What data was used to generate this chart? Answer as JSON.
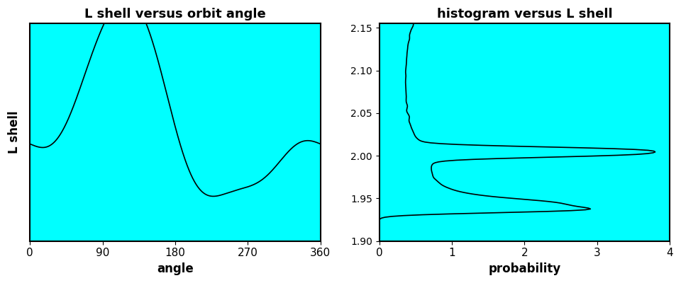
{
  "title_left": "L shell versus orbit angle",
  "title_right": "histogram versus L shell",
  "xlabel_left": "angle",
  "ylabel_left": "L shell",
  "xlabel_right": "probability",
  "xlim_left": [
    0,
    360
  ],
  "ylim_left": [
    1.875,
    2.165
  ],
  "xlim_right": [
    0,
    4
  ],
  "ylim_right": [
    1.9,
    2.155
  ],
  "xticks_left": [
    0,
    90,
    180,
    270,
    360
  ],
  "xticks_right": [
    0,
    1,
    2,
    3,
    4
  ],
  "yticks_right": [
    1.9,
    1.95,
    2.0,
    2.05,
    2.1,
    2.15
  ],
  "grid_color": "#00ffff",
  "bg_color": "#00ffff",
  "line_color": "#000000",
  "title_fontsize": 13,
  "label_fontsize": 12,
  "figsize": [
    9.6,
    4.0
  ],
  "dpi": 100
}
